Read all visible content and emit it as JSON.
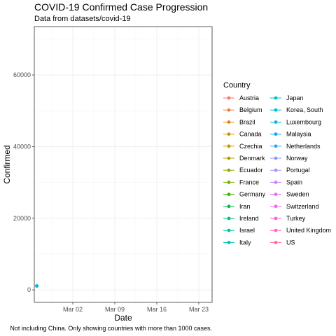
{
  "chart_data": {
    "type": "line",
    "title": "COVID-19 Confirmed Case Progression",
    "subtitle": "Data from datasets/covid-19",
    "caption": "Not including China. Only showing countries with more than 1000 cases.",
    "xlabel": "Date",
    "ylabel": "Confirmed",
    "x_ticks": [
      "Mar 02",
      "Mar 09",
      "Mar 16",
      "Mar 23"
    ],
    "y_ticks": [
      0,
      20000,
      40000,
      60000
    ],
    "ylim": [
      -3500,
      73500
    ],
    "grid": true,
    "legend": {
      "title": "Country",
      "placement": "right",
      "entries": [
        {
          "name": "Austria",
          "color": "#F8766D"
        },
        {
          "name": "Belgium",
          "color": "#F07E4A"
        },
        {
          "name": "Brazil",
          "color": "#E58700"
        },
        {
          "name": "Canada",
          "color": "#D79000"
        },
        {
          "name": "Czechia",
          "color": "#C59900"
        },
        {
          "name": "Denmark",
          "color": "#B0A100"
        },
        {
          "name": "Ecuador",
          "color": "#96A900"
        },
        {
          "name": "France",
          "color": "#72B000"
        },
        {
          "name": "Germany",
          "color": "#39B600"
        },
        {
          "name": "Iran",
          "color": "#00BB4E"
        },
        {
          "name": "Ireland",
          "color": "#00BF7D"
        },
        {
          "name": "Israel",
          "color": "#00C19F"
        },
        {
          "name": "Italy",
          "color": "#00C1BB"
        },
        {
          "name": "Japan",
          "color": "#00BFC4"
        },
        {
          "name": "Korea, South",
          "color": "#00BCD8"
        },
        {
          "name": "Luxembourg",
          "color": "#00B5EC"
        },
        {
          "name": "Malaysia",
          "color": "#00ABFD"
        },
        {
          "name": "Netherlands",
          "color": "#35A2FF"
        },
        {
          "name": "Norway",
          "color": "#8E97FF"
        },
        {
          "name": "Portugal",
          "color": "#B48BFF"
        },
        {
          "name": "Spain",
          "color": "#CF7CFF"
        },
        {
          "name": "Sweden",
          "color": "#E36EF6"
        },
        {
          "name": "Switzerland",
          "color": "#F066E8"
        },
        {
          "name": "Turkey",
          "color": "#FA62D3"
        },
        {
          "name": "United Kingdom",
          "color": "#FF64B9"
        },
        {
          "name": "US",
          "color": "#FF6C9A"
        }
      ]
    },
    "points": [
      {
        "series": "Japan",
        "x": "Feb 25",
        "y": 1100
      }
    ]
  }
}
